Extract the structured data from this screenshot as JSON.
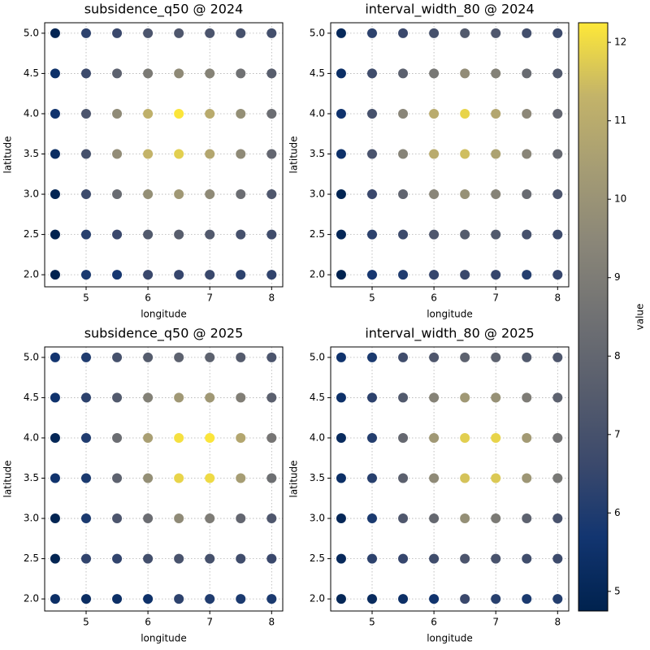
{
  "chart_data": [
    {
      "type": "scatter",
      "title": "subsidence_q50 @ 2024",
      "xlabel": "longitude",
      "ylabel": "latitude",
      "x": [
        4.5,
        5,
        5.5,
        6,
        6.5,
        7,
        7.5,
        8,
        4.5,
        5,
        5.5,
        6,
        6.5,
        7,
        7.5,
        8,
        4.5,
        5,
        5.5,
        6,
        6.5,
        7,
        7.5,
        8,
        4.5,
        5,
        5.5,
        6,
        6.5,
        7,
        7.5,
        8,
        4.5,
        5,
        5.5,
        6,
        6.5,
        7,
        7.5,
        8,
        4.5,
        5,
        5.5,
        6,
        6.5,
        7,
        7.5,
        8,
        4.5,
        5,
        5.5,
        6,
        6.5,
        7,
        7.5,
        8
      ],
      "y": [
        2,
        2,
        2,
        2,
        2,
        2,
        2,
        2,
        2.5,
        2.5,
        2.5,
        2.5,
        2.5,
        2.5,
        2.5,
        2.5,
        3,
        3,
        3,
        3,
        3,
        3,
        3,
        3,
        3.5,
        3.5,
        3.5,
        3.5,
        3.5,
        3.5,
        3.5,
        3.5,
        4,
        4,
        4,
        4,
        4,
        4,
        4,
        4,
        4.5,
        4.5,
        4.5,
        4.5,
        4.5,
        4.5,
        4.5,
        4.5,
        5,
        5,
        5,
        5,
        5,
        5,
        5,
        5
      ],
      "values": [
        4.8,
        5.9,
        5.8,
        6.6,
        6.5,
        6.6,
        6.3,
        6.4,
        4.8,
        6.2,
        6.6,
        7.4,
        7.6,
        7.4,
        7.0,
        6.8,
        4.9,
        6.7,
        8.2,
        9.8,
        10.2,
        9.6,
        8.3,
        7.3,
        5.3,
        7.0,
        9.7,
        11.3,
        11.8,
        10.8,
        9.6,
        8.0,
        5.6,
        7.2,
        9.6,
        11.2,
        12.2,
        11.0,
        9.8,
        8.3,
        5.5,
        6.7,
        7.8,
        8.9,
        9.6,
        9.3,
        8.5,
        7.6,
        4.9,
        6.3,
        6.6,
        7.2,
        7.3,
        7.2,
        7.0,
        6.9
      ],
      "xlim": [
        4.33,
        8.18
      ],
      "ylim": [
        1.85,
        5.13
      ],
      "xticks": [
        5,
        6,
        7,
        8
      ],
      "yticks": [
        {
          "value": 2,
          "label": "2.0"
        },
        {
          "value": 2.5,
          "label": "2.5"
        },
        {
          "value": 3,
          "label": "3.0"
        },
        {
          "value": 3.5,
          "label": "3.5"
        },
        {
          "value": 4,
          "label": "4.0"
        },
        {
          "value": 4.5,
          "label": "4.5"
        },
        {
          "value": 5,
          "label": "5.0"
        }
      ],
      "grid": true,
      "colormap": "cividis"
    },
    {
      "type": "scatter",
      "title": "interval_width_80 @ 2024",
      "xlabel": "longitude",
      "ylabel": "latitude",
      "x": [
        4.5,
        5,
        5.5,
        6,
        6.5,
        7,
        7.5,
        8,
        4.5,
        5,
        5.5,
        6,
        6.5,
        7,
        7.5,
        8,
        4.5,
        5,
        5.5,
        6,
        6.5,
        7,
        7.5,
        8,
        4.5,
        5,
        5.5,
        6,
        6.5,
        7,
        7.5,
        8,
        4.5,
        5,
        5.5,
        6,
        6.5,
        7,
        7.5,
        8,
        4.5,
        5,
        5.5,
        6,
        6.5,
        7,
        7.5,
        8,
        4.5,
        5,
        5.5,
        6,
        6.5,
        7,
        7.5,
        8
      ],
      "y": [
        2,
        2,
        2,
        2,
        2,
        2,
        2,
        2,
        2.5,
        2.5,
        2.5,
        2.5,
        2.5,
        2.5,
        2.5,
        2.5,
        3,
        3,
        3,
        3,
        3,
        3,
        3,
        3,
        3.5,
        3.5,
        3.5,
        3.5,
        3.5,
        3.5,
        3.5,
        3.5,
        4,
        4,
        4,
        4,
        4,
        4,
        4,
        4,
        4.5,
        4.5,
        4.5,
        4.5,
        4.5,
        4.5,
        4.5,
        4.5,
        5,
        5,
        5,
        5,
        5,
        5,
        5,
        5
      ],
      "values": [
        4.8,
        5.8,
        6.0,
        6.5,
        6.6,
        6.5,
        6.1,
        6.5,
        5.0,
        6.3,
        6.7,
        7.3,
        7.5,
        7.4,
        7.0,
        6.7,
        4.9,
        6.6,
        7.9,
        9.4,
        9.9,
        9.3,
        8.2,
        7.2,
        5.5,
        7.1,
        9.3,
        11.0,
        11.5,
        10.6,
        9.4,
        8.1,
        5.6,
        7.0,
        9.4,
        11.0,
        11.9,
        10.8,
        9.5,
        8.0,
        5.4,
        6.8,
        7.7,
        8.8,
        9.7,
        9.2,
        8.2,
        7.4,
        5.1,
        6.3,
        6.6,
        7.0,
        7.4,
        7.3,
        6.9,
        6.7
      ],
      "xlim": [
        4.33,
        8.18
      ],
      "ylim": [
        1.85,
        5.13
      ],
      "xticks": [
        5,
        6,
        7,
        8
      ],
      "yticks": [
        {
          "value": 2,
          "label": "2.0"
        },
        {
          "value": 2.5,
          "label": "2.5"
        },
        {
          "value": 3,
          "label": "3.0"
        },
        {
          "value": 3.5,
          "label": "3.5"
        },
        {
          "value": 4,
          "label": "4.0"
        },
        {
          "value": 4.5,
          "label": "4.5"
        },
        {
          "value": 5,
          "label": "5.0"
        }
      ],
      "grid": true,
      "colormap": "cividis"
    },
    {
      "type": "scatter",
      "title": "subsidence_q50 @ 2025",
      "xlabel": "longitude",
      "ylabel": "latitude",
      "x": [
        4.5,
        5,
        5.5,
        6,
        6.5,
        7,
        7.5,
        8,
        4.5,
        5,
        5.5,
        6,
        6.5,
        7,
        7.5,
        8,
        4.5,
        5,
        5.5,
        6,
        6.5,
        7,
        7.5,
        8,
        4.5,
        5,
        5.5,
        6,
        6.5,
        7,
        7.5,
        8,
        4.5,
        5,
        5.5,
        6,
        6.5,
        7,
        7.5,
        8,
        4.5,
        5,
        5.5,
        6,
        6.5,
        7,
        7.5,
        8,
        4.5,
        5,
        5.5,
        6,
        6.5,
        7,
        7.5,
        8
      ],
      "y": [
        2,
        2,
        2,
        2,
        2,
        2,
        2,
        2,
        2.5,
        2.5,
        2.5,
        2.5,
        2.5,
        2.5,
        2.5,
        2.5,
        3,
        3,
        3,
        3,
        3,
        3,
        3,
        3,
        3.5,
        3.5,
        3.5,
        3.5,
        3.5,
        3.5,
        3.5,
        3.5,
        4,
        4,
        4,
        4,
        4,
        4,
        4,
        4,
        4.5,
        4.5,
        4.5,
        4.5,
        4.5,
        4.5,
        4.5,
        4.5,
        5,
        5,
        5,
        5,
        5,
        5,
        5,
        5
      ],
      "values": [
        5.4,
        5.3,
        5.4,
        5.5,
        6.3,
        6.0,
        5.9,
        5.9,
        4.9,
        6.4,
        6.4,
        6.9,
        7.1,
        7.0,
        6.8,
        6.6,
        4.9,
        5.9,
        7.2,
        8.3,
        9.6,
        9.0,
        8.0,
        7.3,
        5.6,
        5.9,
        7.8,
        9.8,
        11.9,
        12.0,
        10.4,
        8.4,
        5.0,
        6.0,
        8.3,
        10.5,
        12.1,
        12.2,
        10.8,
        8.7,
        5.6,
        6.3,
        7.4,
        9.2,
        10.2,
        10.2,
        9.1,
        7.7,
        5.7,
        6.0,
        7.0,
        7.5,
        7.8,
        7.8,
        7.5,
        7.2
      ],
      "xlim": [
        4.33,
        8.18
      ],
      "ylim": [
        1.85,
        5.13
      ],
      "xticks": [
        5,
        6,
        7,
        8
      ],
      "yticks": [
        {
          "value": 2,
          "label": "2.0"
        },
        {
          "value": 2.5,
          "label": "2.5"
        },
        {
          "value": 3,
          "label": "3.0"
        },
        {
          "value": 3.5,
          "label": "3.5"
        },
        {
          "value": 4,
          "label": "4.0"
        },
        {
          "value": 4.5,
          "label": "4.5"
        },
        {
          "value": 5,
          "label": "5.0"
        }
      ],
      "grid": true,
      "colormap": "cividis"
    },
    {
      "type": "scatter",
      "title": "interval_width_80 @ 2025",
      "xlabel": "longitude",
      "ylabel": "latitude",
      "x": [
        4.5,
        5,
        5.5,
        6,
        6.5,
        7,
        7.5,
        8,
        4.5,
        5,
        5.5,
        6,
        6.5,
        7,
        7.5,
        8,
        4.5,
        5,
        5.5,
        6,
        6.5,
        7,
        7.5,
        8,
        4.5,
        5,
        5.5,
        6,
        6.5,
        7,
        7.5,
        8,
        4.5,
        5,
        5.5,
        6,
        6.5,
        7,
        7.5,
        8,
        4.5,
        5,
        5.5,
        6,
        6.5,
        7,
        7.5,
        8,
        4.5,
        5,
        5.5,
        6,
        6.5,
        7,
        7.5,
        8
      ],
      "y": [
        2,
        2,
        2,
        2,
        2,
        2,
        2,
        2,
        2.5,
        2.5,
        2.5,
        2.5,
        2.5,
        2.5,
        2.5,
        2.5,
        3,
        3,
        3,
        3,
        3,
        3,
        3,
        3,
        3.5,
        3.5,
        3.5,
        3.5,
        3.5,
        3.5,
        3.5,
        3.5,
        4,
        4,
        4,
        4,
        4,
        4,
        4,
        4,
        4.5,
        4.5,
        4.5,
        4.5,
        4.5,
        4.5,
        4.5,
        4.5,
        5,
        5,
        5,
        5,
        5,
        5,
        5,
        5
      ],
      "values": [
        5.0,
        5.2,
        5.4,
        5.6,
        6.6,
        6.2,
        5.9,
        6.1,
        5.1,
        6.3,
        6.5,
        6.8,
        7.2,
        7.1,
        6.8,
        6.7,
        5.0,
        5.9,
        7.3,
        8.1,
        9.8,
        8.9,
        7.8,
        7.1,
        5.4,
        6.2,
        7.7,
        9.6,
        11.6,
        11.7,
        10.1,
        8.8,
        5.2,
        6.1,
        8.1,
        10.2,
        11.8,
        11.9,
        10.3,
        8.6,
        5.5,
        6.3,
        7.4,
        9.3,
        10.2,
        9.9,
        9.0,
        7.8,
        5.6,
        5.9,
        6.8,
        7.3,
        7.8,
        7.8,
        7.4,
        7.3
      ],
      "xlim": [
        4.33,
        8.18
      ],
      "ylim": [
        1.85,
        5.13
      ],
      "xticks": [
        5,
        6,
        7,
        8
      ],
      "yticks": [
        {
          "value": 2,
          "label": "2.0"
        },
        {
          "value": 2.5,
          "label": "2.5"
        },
        {
          "value": 3,
          "label": "3.0"
        },
        {
          "value": 3.5,
          "label": "3.5"
        },
        {
          "value": 4,
          "label": "4.0"
        },
        {
          "value": 4.5,
          "label": "4.5"
        },
        {
          "value": 5,
          "label": "5.0"
        }
      ],
      "grid": true,
      "colormap": "cividis"
    },
    {
      "type": "colorbar",
      "label": "value",
      "clim": [
        4.75,
        12.25
      ],
      "ticks": [
        5,
        6,
        7,
        8,
        9,
        10,
        11,
        12
      ],
      "colormap": "cividis"
    }
  ]
}
